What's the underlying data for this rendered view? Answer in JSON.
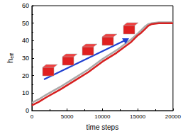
{
  "chart_data": {
    "type": "line",
    "xlabel": "time steps",
    "ylabel": "heff",
    "x": [
      0,
      1000,
      2000,
      4000,
      6000,
      8000,
      10000,
      12000,
      14000,
      15000,
      15500,
      16000,
      16500,
      17000,
      18000,
      20000
    ],
    "series": [
      {
        "color": "#aaaaaa",
        "values": [
          4.5,
          6.5,
          9,
          13.5,
          18.5,
          23.5,
          29.5,
          34.5,
          40.5,
          44,
          46,
          48,
          49.5,
          50,
          50.5,
          50.5
        ]
      },
      {
        "color": "#d62020",
        "values": [
          3,
          5,
          7.5,
          12,
          17,
          22,
          28,
          33,
          39,
          43,
          44.5,
          46.5,
          48.5,
          49.5,
          50,
          50
        ]
      }
    ],
    "xlim": [
      0,
      20000
    ],
    "xticks": [
      0,
      5000,
      10000,
      15000,
      20000
    ],
    "ylim": [
      0,
      60
    ],
    "yticks": [
      0,
      10,
      20,
      30,
      40,
      50,
      60
    ],
    "grid": false
  }
}
